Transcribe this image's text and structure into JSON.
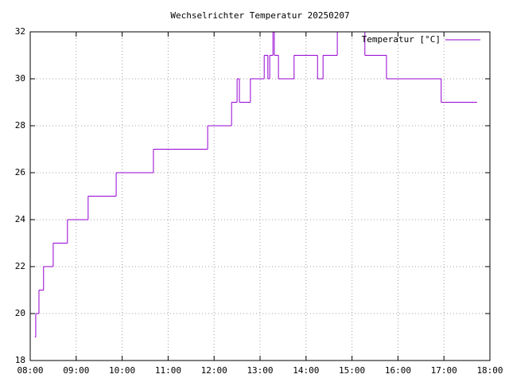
{
  "chart_data": {
    "type": "line",
    "steps": true,
    "title": "Wechselrichter Temperatur 20250207",
    "grid": true,
    "legend": "top-right",
    "xlim": [
      8,
      18
    ],
    "xticks": [
      {
        "value": 8,
        "label": "08:00"
      },
      {
        "value": 9,
        "label": "09:00"
      },
      {
        "value": 10,
        "label": "10:00"
      },
      {
        "value": 11,
        "label": "11:00"
      },
      {
        "value": 12,
        "label": "12:00"
      },
      {
        "value": 13,
        "label": "13:00"
      },
      {
        "value": 14,
        "label": "14:00"
      },
      {
        "value": 15,
        "label": "15:00"
      },
      {
        "value": 16,
        "label": "16:00"
      },
      {
        "value": 17,
        "label": "17:00"
      },
      {
        "value": 18,
        "label": "18:00"
      }
    ],
    "ylim": [
      18,
      32
    ],
    "yticks": [
      18,
      20,
      22,
      24,
      26,
      28,
      30,
      32
    ],
    "x": [
      8.1,
      8.12,
      8.19,
      8.29,
      8.5,
      8.81,
      9.26,
      9.87,
      10.68,
      11.86,
      12.38,
      12.5,
      12.55,
      12.79,
      13.09,
      13.17,
      13.21,
      13.28,
      13.31,
      13.4,
      13.74,
      14.25,
      14.37,
      14.68,
      15.28,
      15.75,
      16.94,
      17.72
    ],
    "series": [
      {
        "name": "Temperatur [°C]",
        "color": "#9400d3",
        "values": [
          19,
          20,
          21,
          22,
          23,
          24,
          25,
          26,
          27,
          28,
          29,
          30,
          29,
          30,
          31,
          30,
          31,
          32,
          31,
          30,
          31,
          30,
          31,
          32,
          31,
          30,
          29,
          29
        ]
      }
    ]
  }
}
